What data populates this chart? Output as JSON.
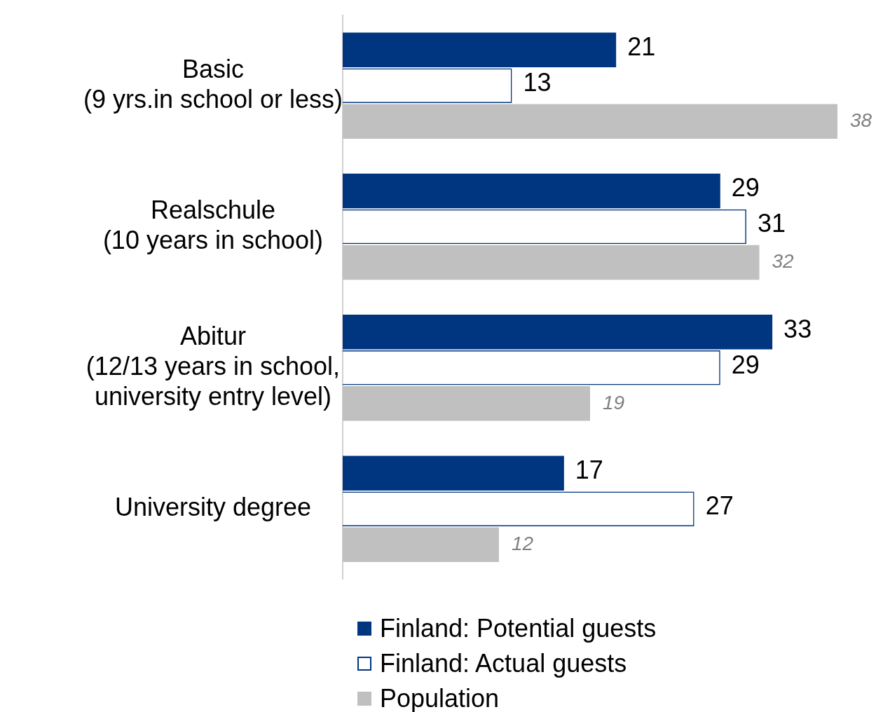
{
  "chart_data": {
    "type": "bar",
    "orientation": "horizontal",
    "categories": [
      "Basic\n(9 yrs.in school or less)",
      "Realschule\n(10 years in school)",
      "Abitur\n(12/13 years in school,\nuniversity entry level)",
      "University degree"
    ],
    "series": [
      {
        "name": "Finland: Potential guests",
        "color": "#003580",
        "values": [
          21,
          29,
          33,
          17
        ]
      },
      {
        "name": "Finland: Actual guests",
        "color": "#003580",
        "values": [
          13,
          31,
          29,
          27
        ]
      },
      {
        "name": "Population",
        "color": "#c0c0c0",
        "values": [
          38,
          32,
          19,
          12
        ]
      }
    ],
    "xlim": [
      0,
      38
    ],
    "data_labels": true,
    "legend": "bottom",
    "tick_labels": "y"
  }
}
